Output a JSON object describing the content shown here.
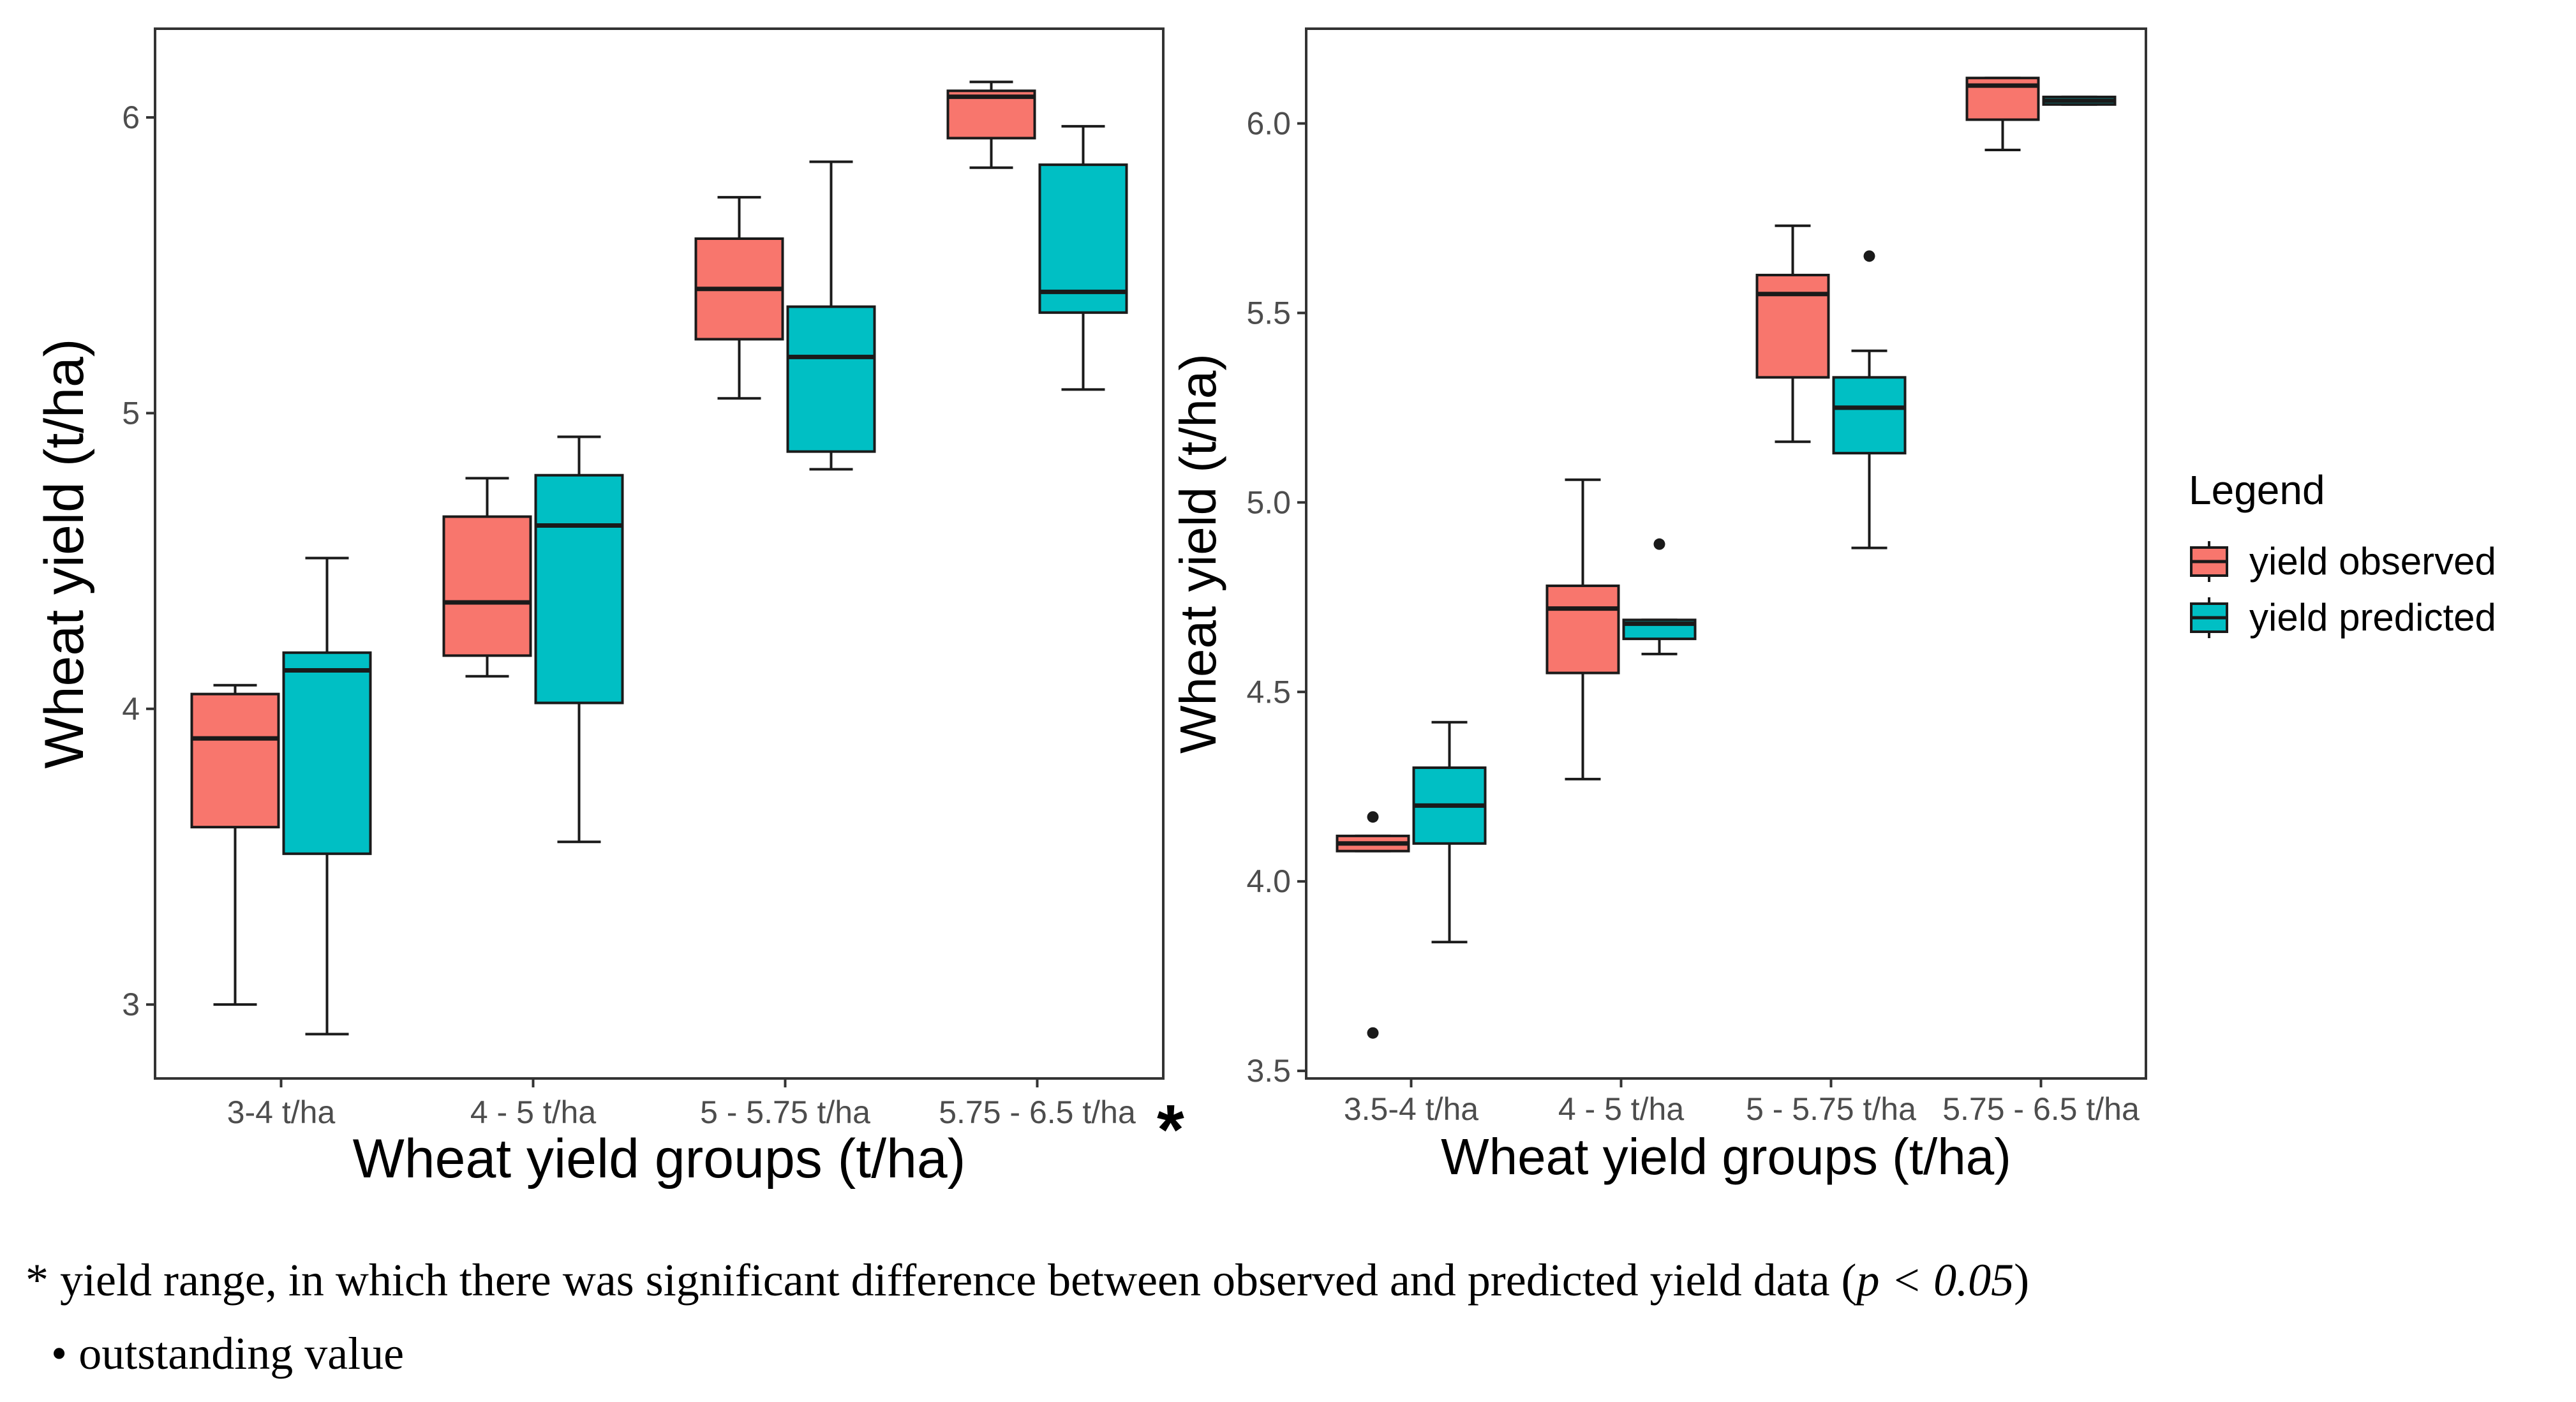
{
  "colors": {
    "observed": "#F8766D",
    "predicted": "#00BFC4",
    "axis": "#333333",
    "tick_text": "#4d4d4d"
  },
  "chart_data": [
    {
      "type": "boxplot",
      "panel": "left",
      "xlabel": "Wheat yield groups (t/ha)",
      "ylabel": "Wheat yield (t/ha)",
      "ylim": [
        2.75,
        6.3
      ],
      "yticks": [
        3,
        4,
        5,
        6
      ],
      "ytick_labels": [
        "3",
        "4",
        "5",
        "6"
      ],
      "categories": [
        "3-4 t/ha",
        "4 - 5 t/ha",
        "5 - 5.75 t/ha",
        "5.75 - 6.5 t/ha"
      ],
      "significant_marker": "*",
      "significant_category_index": 3,
      "series": [
        {
          "name": "yield observed",
          "boxes": [
            {
              "min": 3.0,
              "q1": 3.6,
              "median": 3.9,
              "q3": 4.05,
              "max": 4.08,
              "outliers": []
            },
            {
              "min": 4.11,
              "q1": 4.18,
              "median": 4.36,
              "q3": 4.65,
              "max": 4.78,
              "outliers": []
            },
            {
              "min": 5.05,
              "q1": 5.25,
              "median": 5.42,
              "q3": 5.59,
              "max": 5.73,
              "outliers": []
            },
            {
              "min": 5.83,
              "q1": 5.93,
              "median": 6.07,
              "q3": 6.09,
              "max": 6.12,
              "outliers": []
            }
          ]
        },
        {
          "name": "yield predicted",
          "boxes": [
            {
              "min": 2.9,
              "q1": 3.51,
              "median": 4.13,
              "q3": 4.19,
              "max": 4.51,
              "outliers": []
            },
            {
              "min": 3.55,
              "q1": 4.02,
              "median": 4.62,
              "q3": 4.79,
              "max": 4.92,
              "outliers": []
            },
            {
              "min": 4.81,
              "q1": 4.87,
              "median": 5.19,
              "q3": 5.36,
              "max": 5.85,
              "outliers": []
            },
            {
              "min": 5.08,
              "q1": 5.34,
              "median": 5.41,
              "q3": 5.84,
              "max": 5.97,
              "outliers": []
            }
          ]
        }
      ]
    },
    {
      "type": "boxplot",
      "panel": "right",
      "xlabel": "Wheat yield groups (t/ha)",
      "ylabel": "Wheat yield (t/ha)",
      "ylim": [
        3.48,
        6.25
      ],
      "yticks": [
        3.5,
        4.0,
        4.5,
        5.0,
        5.5,
        6.0
      ],
      "ytick_labels": [
        "3.5",
        "4.0",
        "4.5",
        "5.0",
        "5.5",
        "6.0"
      ],
      "categories": [
        "3.5-4 t/ha",
        "4 - 5 t/ha",
        "5 - 5.75 t/ha",
        "5.75 - 6.5 t/ha"
      ],
      "series": [
        {
          "name": "yield observed",
          "boxes": [
            {
              "min": 4.08,
              "q1": 4.08,
              "median": 4.1,
              "q3": 4.12,
              "max": 4.12,
              "outliers": [
                4.17,
                3.6
              ]
            },
            {
              "min": 4.27,
              "q1": 4.55,
              "median": 4.72,
              "q3": 4.78,
              "max": 5.06,
              "outliers": []
            },
            {
              "min": 5.16,
              "q1": 5.33,
              "median": 5.55,
              "q3": 5.6,
              "max": 5.73,
              "outliers": []
            },
            {
              "min": 5.93,
              "q1": 6.01,
              "median": 6.1,
              "q3": 6.12,
              "max": 6.12,
              "outliers": []
            }
          ]
        },
        {
          "name": "yield predicted",
          "boxes": [
            {
              "min": 3.84,
              "q1": 4.1,
              "median": 4.2,
              "q3": 4.3,
              "max": 4.42,
              "outliers": []
            },
            {
              "min": 4.6,
              "q1": 4.64,
              "median": 4.68,
              "q3": 4.69,
              "max": 4.69,
              "outliers": [
                4.89
              ]
            },
            {
              "min": 4.88,
              "q1": 5.13,
              "median": 5.25,
              "q3": 5.33,
              "max": 5.4,
              "outliers": [
                5.65
              ]
            },
            {
              "min": 6.05,
              "q1": 6.05,
              "median": 6.06,
              "q3": 6.07,
              "max": 6.07,
              "outliers": []
            }
          ]
        }
      ]
    }
  ],
  "legend": {
    "title": "Legend",
    "items": [
      "yield observed",
      "yield predicted"
    ]
  },
  "footnotes": {
    "line1_prefix": "* yield range, in which there was significant difference between observed and predicted yield data (",
    "line1_stat": "p < 0.05",
    "line1_suffix": ")",
    "line2": "• outstanding value"
  }
}
